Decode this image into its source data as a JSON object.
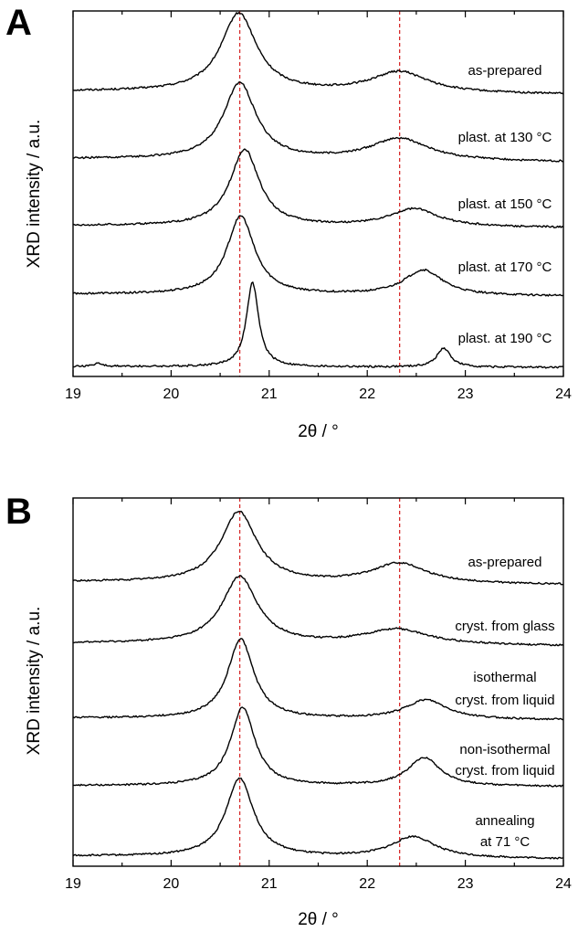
{
  "chart_data": [
    {
      "panel": "A",
      "type": "line",
      "xlabel": "2θ / °",
      "ylabel": "XRD intensity / a.u.",
      "xlim": [
        19,
        24
      ],
      "xticks": [
        "19",
        "20",
        "21",
        "22",
        "23",
        "24"
      ],
      "reference_lines": [
        20.7,
        22.33
      ],
      "reference_line_color": "#d62a2a",
      "yticks": "none",
      "series": [
        {
          "name": "as-prepared",
          "baseline": 0.1,
          "slope": -0.03,
          "peaks": [
            {
              "center": 20.69,
              "height": 0.75,
              "width": 0.22
            },
            {
              "center": 22.33,
              "height": 0.2,
              "width": 0.35
            }
          ]
        },
        {
          "name": "plast. at 130 °C",
          "baseline": 0.09,
          "slope": -0.03,
          "peaks": [
            {
              "center": 20.7,
              "height": 0.73,
              "width": 0.2
            },
            {
              "center": 22.33,
              "height": 0.21,
              "width": 0.36
            }
          ]
        },
        {
          "name": "plast. at 150 °C",
          "baseline": 0.08,
          "slope": -0.02,
          "peaks": [
            {
              "center": 20.75,
              "height": 0.73,
              "width": 0.18
            },
            {
              "center": 22.48,
              "height": 0.17,
              "width": 0.3
            }
          ]
        },
        {
          "name": "plast. at 170 °C",
          "baseline": 0.07,
          "slope": -0.02,
          "peaks": [
            {
              "center": 20.71,
              "height": 0.75,
              "width": 0.17
            },
            {
              "center": 22.57,
              "height": 0.24,
              "width": 0.24
            }
          ]
        },
        {
          "name": "plast. at 190 °C",
          "baseline": 0.03,
          "slope": -0.01,
          "peaks": [
            {
              "center": 20.83,
              "height": 0.8,
              "width": 0.075
            },
            {
              "center": 22.78,
              "height": 0.18,
              "width": 0.085
            },
            {
              "center": 19.25,
              "height": 0.03,
              "width": 0.05
            }
          ]
        }
      ]
    },
    {
      "panel": "B",
      "type": "line",
      "xlabel": "2θ / °",
      "ylabel": "XRD intensity / a.u.",
      "xlim": [
        19,
        24
      ],
      "xticks": [
        "19",
        "20",
        "21",
        "22",
        "23",
        "24"
      ],
      "reference_lines": [
        20.7,
        22.33
      ],
      "reference_line_color": "#d62a2a",
      "yticks": "none",
      "series": [
        {
          "name": "as-prepared",
          "baseline": 0.1,
          "slope": -0.03,
          "peaks": [
            {
              "center": 20.69,
              "height": 0.74,
              "width": 0.22
            },
            {
              "center": 22.33,
              "height": 0.21,
              "width": 0.34
            }
          ]
        },
        {
          "name": "cryst. from glass",
          "baseline": 0.09,
          "slope": -0.03,
          "peaks": [
            {
              "center": 20.7,
              "height": 0.7,
              "width": 0.22
            },
            {
              "center": 22.3,
              "height": 0.16,
              "width": 0.4
            }
          ]
        },
        {
          "name": "isothermal\ncryst. from liquid",
          "baseline": 0.06,
          "slope": -0.02,
          "peaks": [
            {
              "center": 20.71,
              "height": 0.83,
              "width": 0.16
            },
            {
              "center": 22.6,
              "height": 0.2,
              "width": 0.26
            }
          ]
        },
        {
          "name": "non-isothermal\ncryst. from liquid",
          "baseline": 0.04,
          "slope": -0.01,
          "peaks": [
            {
              "center": 20.73,
              "height": 0.82,
              "width": 0.15
            },
            {
              "center": 22.58,
              "height": 0.3,
              "width": 0.2
            }
          ]
        },
        {
          "name": "annealing\nat 71 °C",
          "baseline": 0.06,
          "slope": -0.03,
          "peaks": [
            {
              "center": 20.7,
              "height": 0.82,
              "width": 0.17
            },
            {
              "center": 22.47,
              "height": 0.22,
              "width": 0.27
            }
          ]
        }
      ]
    }
  ]
}
